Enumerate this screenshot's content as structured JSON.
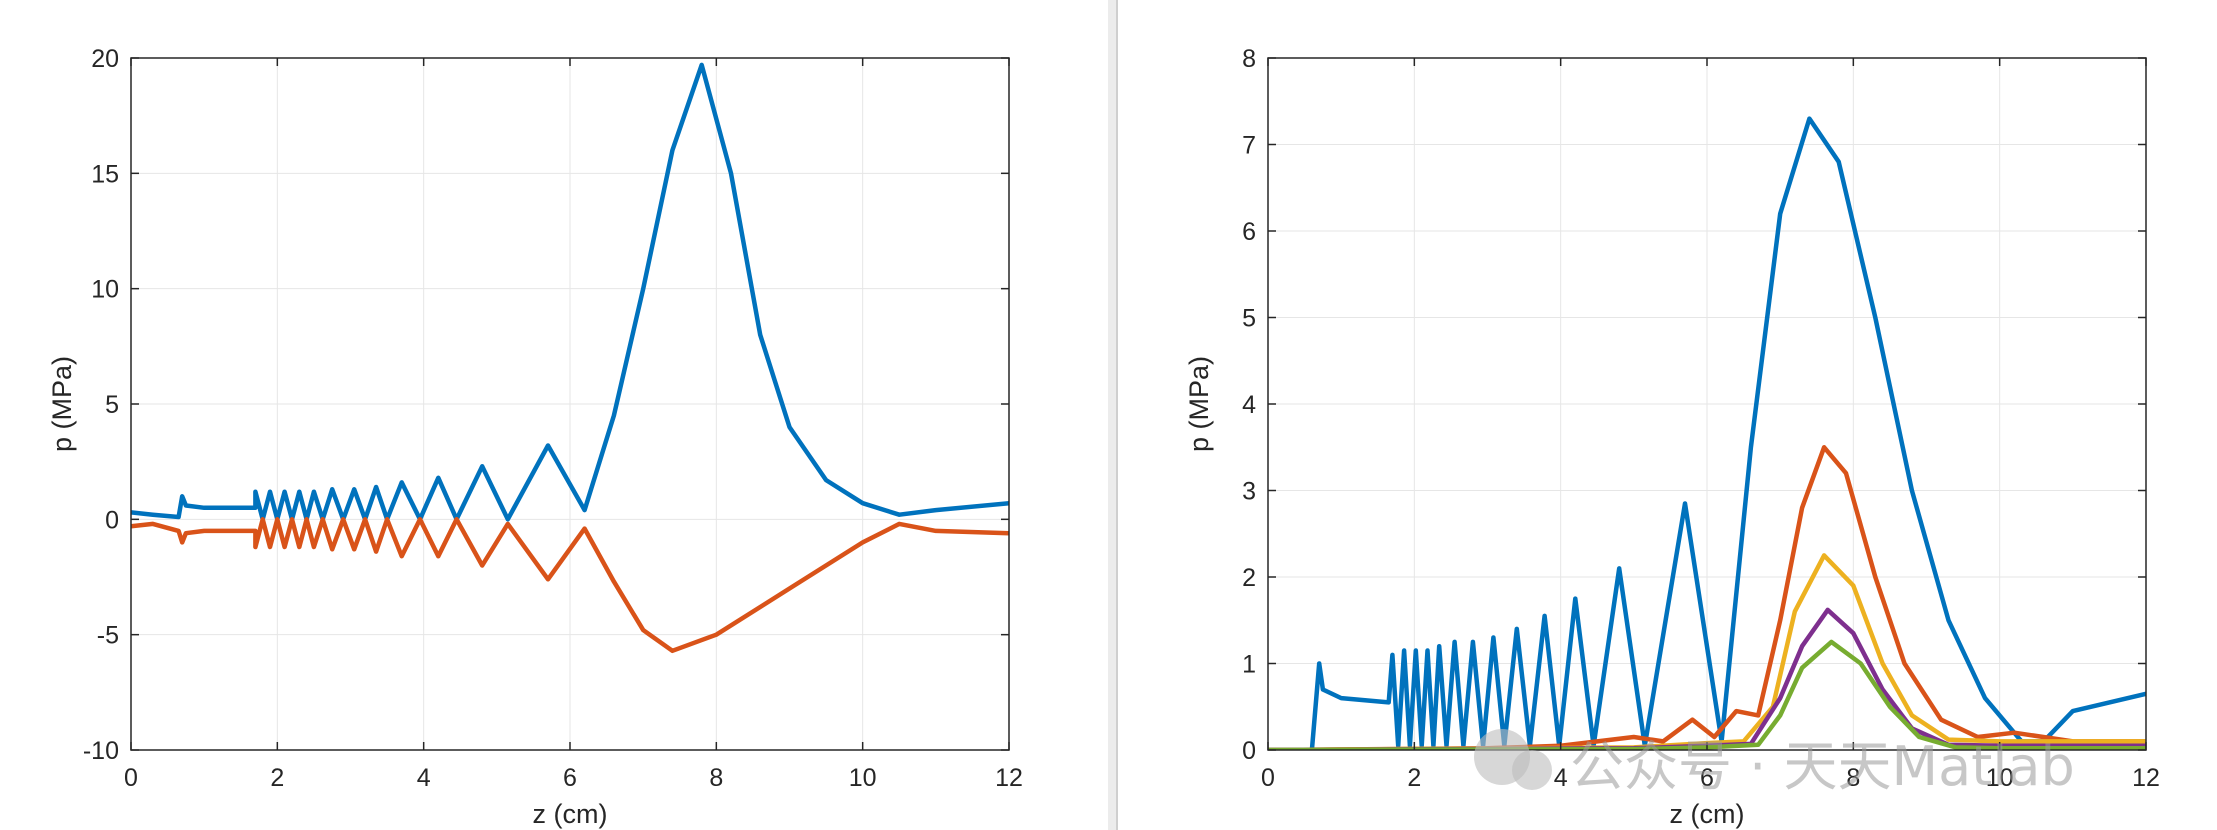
{
  "chart_data": [
    {
      "type": "line",
      "xlabel": "z (cm)",
      "ylabel": "p (MPa)",
      "xlim": [
        0,
        12
      ],
      "ylim": [
        -10,
        20
      ],
      "xticks": [
        0,
        2,
        4,
        6,
        8,
        10,
        12
      ],
      "yticks": [
        -10,
        -5,
        0,
        5,
        10,
        15,
        20
      ],
      "grid": true,
      "series": [
        {
          "color": "#0072BD",
          "points": [
            [
              0,
              0.3
            ],
            [
              0.3,
              0.2
            ],
            [
              0.65,
              0.1
            ],
            [
              0.7,
              1.0
            ],
            [
              0.75,
              0.6
            ],
            [
              1.0,
              0.5
            ],
            [
              1.7,
              0.5
            ],
            [
              1.7,
              1.2
            ],
            [
              1.8,
              0.0
            ],
            [
              1.9,
              1.2
            ],
            [
              2.0,
              0.0
            ],
            [
              2.1,
              1.2
            ],
            [
              2.2,
              0.0
            ],
            [
              2.3,
              1.2
            ],
            [
              2.4,
              0.0
            ],
            [
              2.5,
              1.2
            ],
            [
              2.62,
              0.0
            ],
            [
              2.75,
              1.3
            ],
            [
              2.9,
              0.0
            ],
            [
              3.05,
              1.3
            ],
            [
              3.2,
              0.0
            ],
            [
              3.35,
              1.4
            ],
            [
              3.5,
              0.0
            ],
            [
              3.7,
              1.6
            ],
            [
              3.95,
              0.0
            ],
            [
              4.2,
              1.8
            ],
            [
              4.45,
              0.0
            ],
            [
              4.8,
              2.3
            ],
            [
              5.15,
              0.0
            ],
            [
              5.7,
              3.2
            ],
            [
              6.2,
              0.4
            ],
            [
              6.6,
              4.5
            ],
            [
              7.0,
              10.0
            ],
            [
              7.4,
              16.0
            ],
            [
              7.8,
              19.7
            ],
            [
              8.2,
              15.0
            ],
            [
              8.6,
              8.0
            ],
            [
              9.0,
              4.0
            ],
            [
              9.5,
              1.7
            ],
            [
              10.0,
              0.7
            ],
            [
              10.5,
              0.2
            ],
            [
              11.0,
              0.4
            ],
            [
              12.0,
              0.7
            ]
          ]
        },
        {
          "color": "#D95319",
          "points": [
            [
              0,
              -0.3
            ],
            [
              0.3,
              -0.2
            ],
            [
              0.65,
              -0.5
            ],
            [
              0.7,
              -1.0
            ],
            [
              0.75,
              -0.6
            ],
            [
              1.0,
              -0.5
            ],
            [
              1.7,
              -0.5
            ],
            [
              1.7,
              -1.2
            ],
            [
              1.8,
              0.0
            ],
            [
              1.9,
              -1.2
            ],
            [
              2.0,
              0.0
            ],
            [
              2.1,
              -1.2
            ],
            [
              2.2,
              0.0
            ],
            [
              2.3,
              -1.2
            ],
            [
              2.4,
              0.0
            ],
            [
              2.5,
              -1.2
            ],
            [
              2.62,
              0.0
            ],
            [
              2.75,
              -1.3
            ],
            [
              2.9,
              0.0
            ],
            [
              3.05,
              -1.3
            ],
            [
              3.2,
              0.0
            ],
            [
              3.35,
              -1.4
            ],
            [
              3.5,
              0.0
            ],
            [
              3.7,
              -1.6
            ],
            [
              3.95,
              0.0
            ],
            [
              4.2,
              -1.6
            ],
            [
              4.45,
              0.0
            ],
            [
              4.8,
              -2.0
            ],
            [
              5.15,
              -0.2
            ],
            [
              5.7,
              -2.6
            ],
            [
              6.2,
              -0.4
            ],
            [
              6.6,
              -2.7
            ],
            [
              7.0,
              -4.8
            ],
            [
              7.4,
              -5.7
            ],
            [
              8.0,
              -5.0
            ],
            [
              9.0,
              -3.0
            ],
            [
              10.0,
              -1.0
            ],
            [
              10.5,
              -0.2
            ],
            [
              11.0,
              -0.5
            ],
            [
              12.0,
              -0.6
            ]
          ]
        }
      ]
    },
    {
      "type": "line",
      "xlabel": "z (cm)",
      "ylabel": "p (MPa)",
      "xlim": [
        0,
        12
      ],
      "ylim": [
        0,
        8
      ],
      "xticks": [
        0,
        2,
        4,
        6,
        8,
        10,
        12
      ],
      "yticks": [
        0,
        1,
        2,
        3,
        4,
        5,
        6,
        7,
        8
      ],
      "grid": true,
      "series": [
        {
          "color": "#0072BD",
          "points": [
            [
              0,
              0
            ],
            [
              0.6,
              0
            ],
            [
              0.7,
              1.0
            ],
            [
              0.75,
              0.7
            ],
            [
              1.0,
              0.6
            ],
            [
              1.65,
              0.55
            ],
            [
              1.7,
              1.1
            ],
            [
              1.78,
              0.05
            ],
            [
              1.86,
              1.15
            ],
            [
              1.94,
              0.05
            ],
            [
              2.02,
              1.15
            ],
            [
              2.1,
              0.05
            ],
            [
              2.18,
              1.15
            ],
            [
              2.26,
              0.05
            ],
            [
              2.34,
              1.2
            ],
            [
              2.44,
              0.05
            ],
            [
              2.55,
              1.25
            ],
            [
              2.67,
              0.05
            ],
            [
              2.8,
              1.25
            ],
            [
              2.94,
              0.05
            ],
            [
              3.08,
              1.3
            ],
            [
              3.23,
              0.05
            ],
            [
              3.4,
              1.4
            ],
            [
              3.58,
              0.05
            ],
            [
              3.78,
              1.55
            ],
            [
              3.98,
              0.05
            ],
            [
              4.2,
              1.75
            ],
            [
              4.45,
              0.05
            ],
            [
              4.8,
              2.1
            ],
            [
              5.15,
              0.05
            ],
            [
              5.7,
              2.85
            ],
            [
              6.2,
              0.1
            ],
            [
              6.6,
              3.5
            ],
            [
              7.0,
              6.2
            ],
            [
              7.4,
              7.3
            ],
            [
              7.8,
              6.8
            ],
            [
              8.3,
              5.0
            ],
            [
              8.8,
              3.0
            ],
            [
              9.3,
              1.5
            ],
            [
              9.8,
              0.6
            ],
            [
              10.3,
              0.1
            ],
            [
              10.6,
              0.1
            ],
            [
              11.0,
              0.45
            ],
            [
              12.0,
              0.65
            ]
          ]
        },
        {
          "color": "#D95319",
          "points": [
            [
              0,
              0
            ],
            [
              3.0,
              0.02
            ],
            [
              4.0,
              0.05
            ],
            [
              4.5,
              0.1
            ],
            [
              5.0,
              0.15
            ],
            [
              5.4,
              0.1
            ],
            [
              5.8,
              0.35
            ],
            [
              6.1,
              0.15
            ],
            [
              6.4,
              0.45
            ],
            [
              6.7,
              0.4
            ],
            [
              7.0,
              1.5
            ],
            [
              7.3,
              2.8
            ],
            [
              7.6,
              3.5
            ],
            [
              7.9,
              3.2
            ],
            [
              8.3,
              2.0
            ],
            [
              8.7,
              1.0
            ],
            [
              9.2,
              0.35
            ],
            [
              9.7,
              0.15
            ],
            [
              10.2,
              0.2
            ],
            [
              11.0,
              0.1
            ],
            [
              12.0,
              0.1
            ]
          ]
        },
        {
          "color": "#EDB120",
          "points": [
            [
              0,
              0
            ],
            [
              5.0,
              0.03
            ],
            [
              6.0,
              0.08
            ],
            [
              6.5,
              0.1
            ],
            [
              6.9,
              0.5
            ],
            [
              7.2,
              1.6
            ],
            [
              7.6,
              2.25
            ],
            [
              8.0,
              1.9
            ],
            [
              8.4,
              1.0
            ],
            [
              8.8,
              0.4
            ],
            [
              9.3,
              0.12
            ],
            [
              10.0,
              0.1
            ],
            [
              11.0,
              0.1
            ],
            [
              12.0,
              0.1
            ]
          ]
        },
        {
          "color": "#7E2F8E",
          "points": [
            [
              0,
              0
            ],
            [
              5.0,
              0.02
            ],
            [
              6.0,
              0.05
            ],
            [
              6.6,
              0.07
            ],
            [
              7.0,
              0.6
            ],
            [
              7.3,
              1.2
            ],
            [
              7.65,
              1.62
            ],
            [
              8.0,
              1.35
            ],
            [
              8.4,
              0.7
            ],
            [
              8.8,
              0.25
            ],
            [
              9.3,
              0.06
            ],
            [
              10.0,
              0.05
            ],
            [
              11.0,
              0.05
            ],
            [
              12.0,
              0.05
            ]
          ]
        },
        {
          "color": "#77AC30",
          "points": [
            [
              0,
              0
            ],
            [
              5.0,
              0.01
            ],
            [
              6.0,
              0.03
            ],
            [
              6.7,
              0.06
            ],
            [
              7.0,
              0.4
            ],
            [
              7.3,
              0.95
            ],
            [
              7.7,
              1.25
            ],
            [
              8.1,
              1.0
            ],
            [
              8.5,
              0.5
            ],
            [
              8.9,
              0.15
            ],
            [
              9.4,
              0.03
            ],
            [
              10.0,
              0.02
            ],
            [
              12.0,
              0.02
            ]
          ]
        }
      ]
    }
  ],
  "watermark": {
    "text": "公众号 · 天天Matlab"
  }
}
